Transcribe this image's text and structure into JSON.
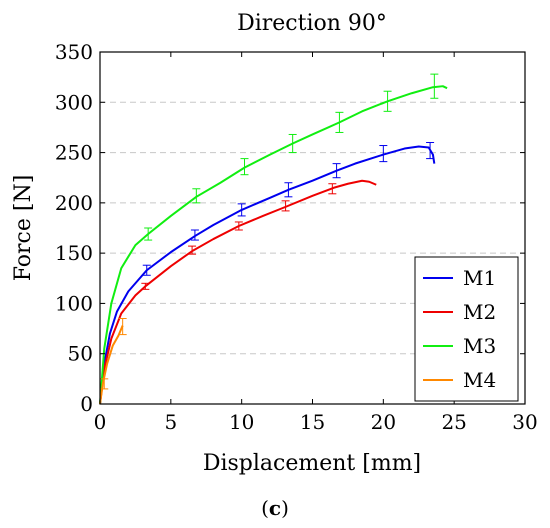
{
  "chart_data": {
    "type": "line",
    "title": "Direction 90°",
    "xlabel": "Displacement [mm]",
    "ylabel": "Force [N]",
    "xlim": [
      0,
      30
    ],
    "ylim": [
      0,
      350
    ],
    "xticks": [
      0,
      5,
      10,
      15,
      20,
      25,
      30
    ],
    "yticks": [
      0,
      50,
      100,
      150,
      200,
      250,
      300,
      350
    ],
    "grid": "horizontal dashed",
    "legend_position": "bottom-right",
    "series": [
      {
        "name": "M1",
        "color": "#0000ee",
        "points": [
          [
            0,
            0
          ],
          [
            0.3,
            40
          ],
          [
            0.7,
            70
          ],
          [
            1.2,
            92
          ],
          [
            2,
            112
          ],
          [
            3.3,
            133
          ],
          [
            5,
            151
          ],
          [
            6.7,
            167
          ],
          [
            8,
            178
          ],
          [
            10,
            193
          ],
          [
            12,
            205
          ],
          [
            13.3,
            213
          ],
          [
            15,
            222
          ],
          [
            16.7,
            232
          ],
          [
            18,
            239
          ],
          [
            20,
            248
          ],
          [
            21.5,
            254
          ],
          [
            22.5,
            256
          ],
          [
            23.2,
            255
          ],
          [
            23.5,
            248
          ],
          [
            23.6,
            239
          ]
        ],
        "error_bars": [
          {
            "x": 3.3,
            "y": 133,
            "err": 5
          },
          {
            "x": 6.7,
            "y": 168,
            "err": 5
          },
          {
            "x": 10,
            "y": 193,
            "err": 6
          },
          {
            "x": 13.3,
            "y": 213,
            "err": 7
          },
          {
            "x": 16.7,
            "y": 232,
            "err": 7
          },
          {
            "x": 20,
            "y": 249,
            "err": 8
          },
          {
            "x": 23.3,
            "y": 252,
            "err": 8
          }
        ]
      },
      {
        "name": "M2",
        "color": "#ee0000",
        "points": [
          [
            0,
            0
          ],
          [
            0.3,
            35
          ],
          [
            0.8,
            65
          ],
          [
            1.5,
            90
          ],
          [
            2.5,
            108
          ],
          [
            3.2,
            117
          ],
          [
            5,
            137
          ],
          [
            6.5,
            152
          ],
          [
            8,
            164
          ],
          [
            9.8,
            177
          ],
          [
            11.5,
            187
          ],
          [
            13.1,
            196
          ],
          [
            15,
            207
          ],
          [
            16.5,
            215
          ],
          [
            17.5,
            219
          ],
          [
            18.5,
            222
          ],
          [
            19,
            221
          ],
          [
            19.5,
            218
          ]
        ],
        "error_bars": [
          {
            "x": 3.2,
            "y": 117,
            "err": 3
          },
          {
            "x": 6.5,
            "y": 153,
            "err": 4
          },
          {
            "x": 9.8,
            "y": 177,
            "err": 4
          },
          {
            "x": 13.1,
            "y": 197,
            "err": 5
          },
          {
            "x": 16.4,
            "y": 214,
            "err": 5
          }
        ]
      },
      {
        "name": "M3",
        "color": "#11ee11",
        "points": [
          [
            0,
            0
          ],
          [
            0.3,
            55
          ],
          [
            0.8,
            100
          ],
          [
            1.5,
            135
          ],
          [
            2.5,
            158
          ],
          [
            3.4,
            169
          ],
          [
            5,
            187
          ],
          [
            6.8,
            206
          ],
          [
            8.5,
            220
          ],
          [
            10.2,
            235
          ],
          [
            12,
            248
          ],
          [
            13.6,
            259
          ],
          [
            15,
            268
          ],
          [
            16.9,
            280
          ],
          [
            18.5,
            291
          ],
          [
            20.3,
            301
          ],
          [
            22,
            309
          ],
          [
            23.5,
            315
          ],
          [
            24.2,
            316
          ],
          [
            24.5,
            314
          ]
        ],
        "error_bars": [
          {
            "x": 3.4,
            "y": 169,
            "err": 6
          },
          {
            "x": 6.8,
            "y": 207,
            "err": 7
          },
          {
            "x": 10.2,
            "y": 236,
            "err": 8
          },
          {
            "x": 13.6,
            "y": 259,
            "err": 9
          },
          {
            "x": 16.9,
            "y": 280,
            "err": 10
          },
          {
            "x": 20.3,
            "y": 301,
            "err": 10
          },
          {
            "x": 23.6,
            "y": 316,
            "err": 12
          }
        ]
      },
      {
        "name": "M4",
        "color": "#ff8800",
        "points": [
          [
            0,
            0
          ],
          [
            0.2,
            20
          ],
          [
            0.5,
            40
          ],
          [
            0.9,
            58
          ],
          [
            1.3,
            68
          ],
          [
            1.6,
            78
          ]
        ],
        "error_bars": [
          {
            "x": 0.3,
            "y": 20,
            "err": 5
          },
          {
            "x": 1.6,
            "y": 77,
            "err": 8
          }
        ]
      }
    ]
  },
  "caption": {
    "open": "(",
    "letter": "c",
    "close": ")"
  }
}
